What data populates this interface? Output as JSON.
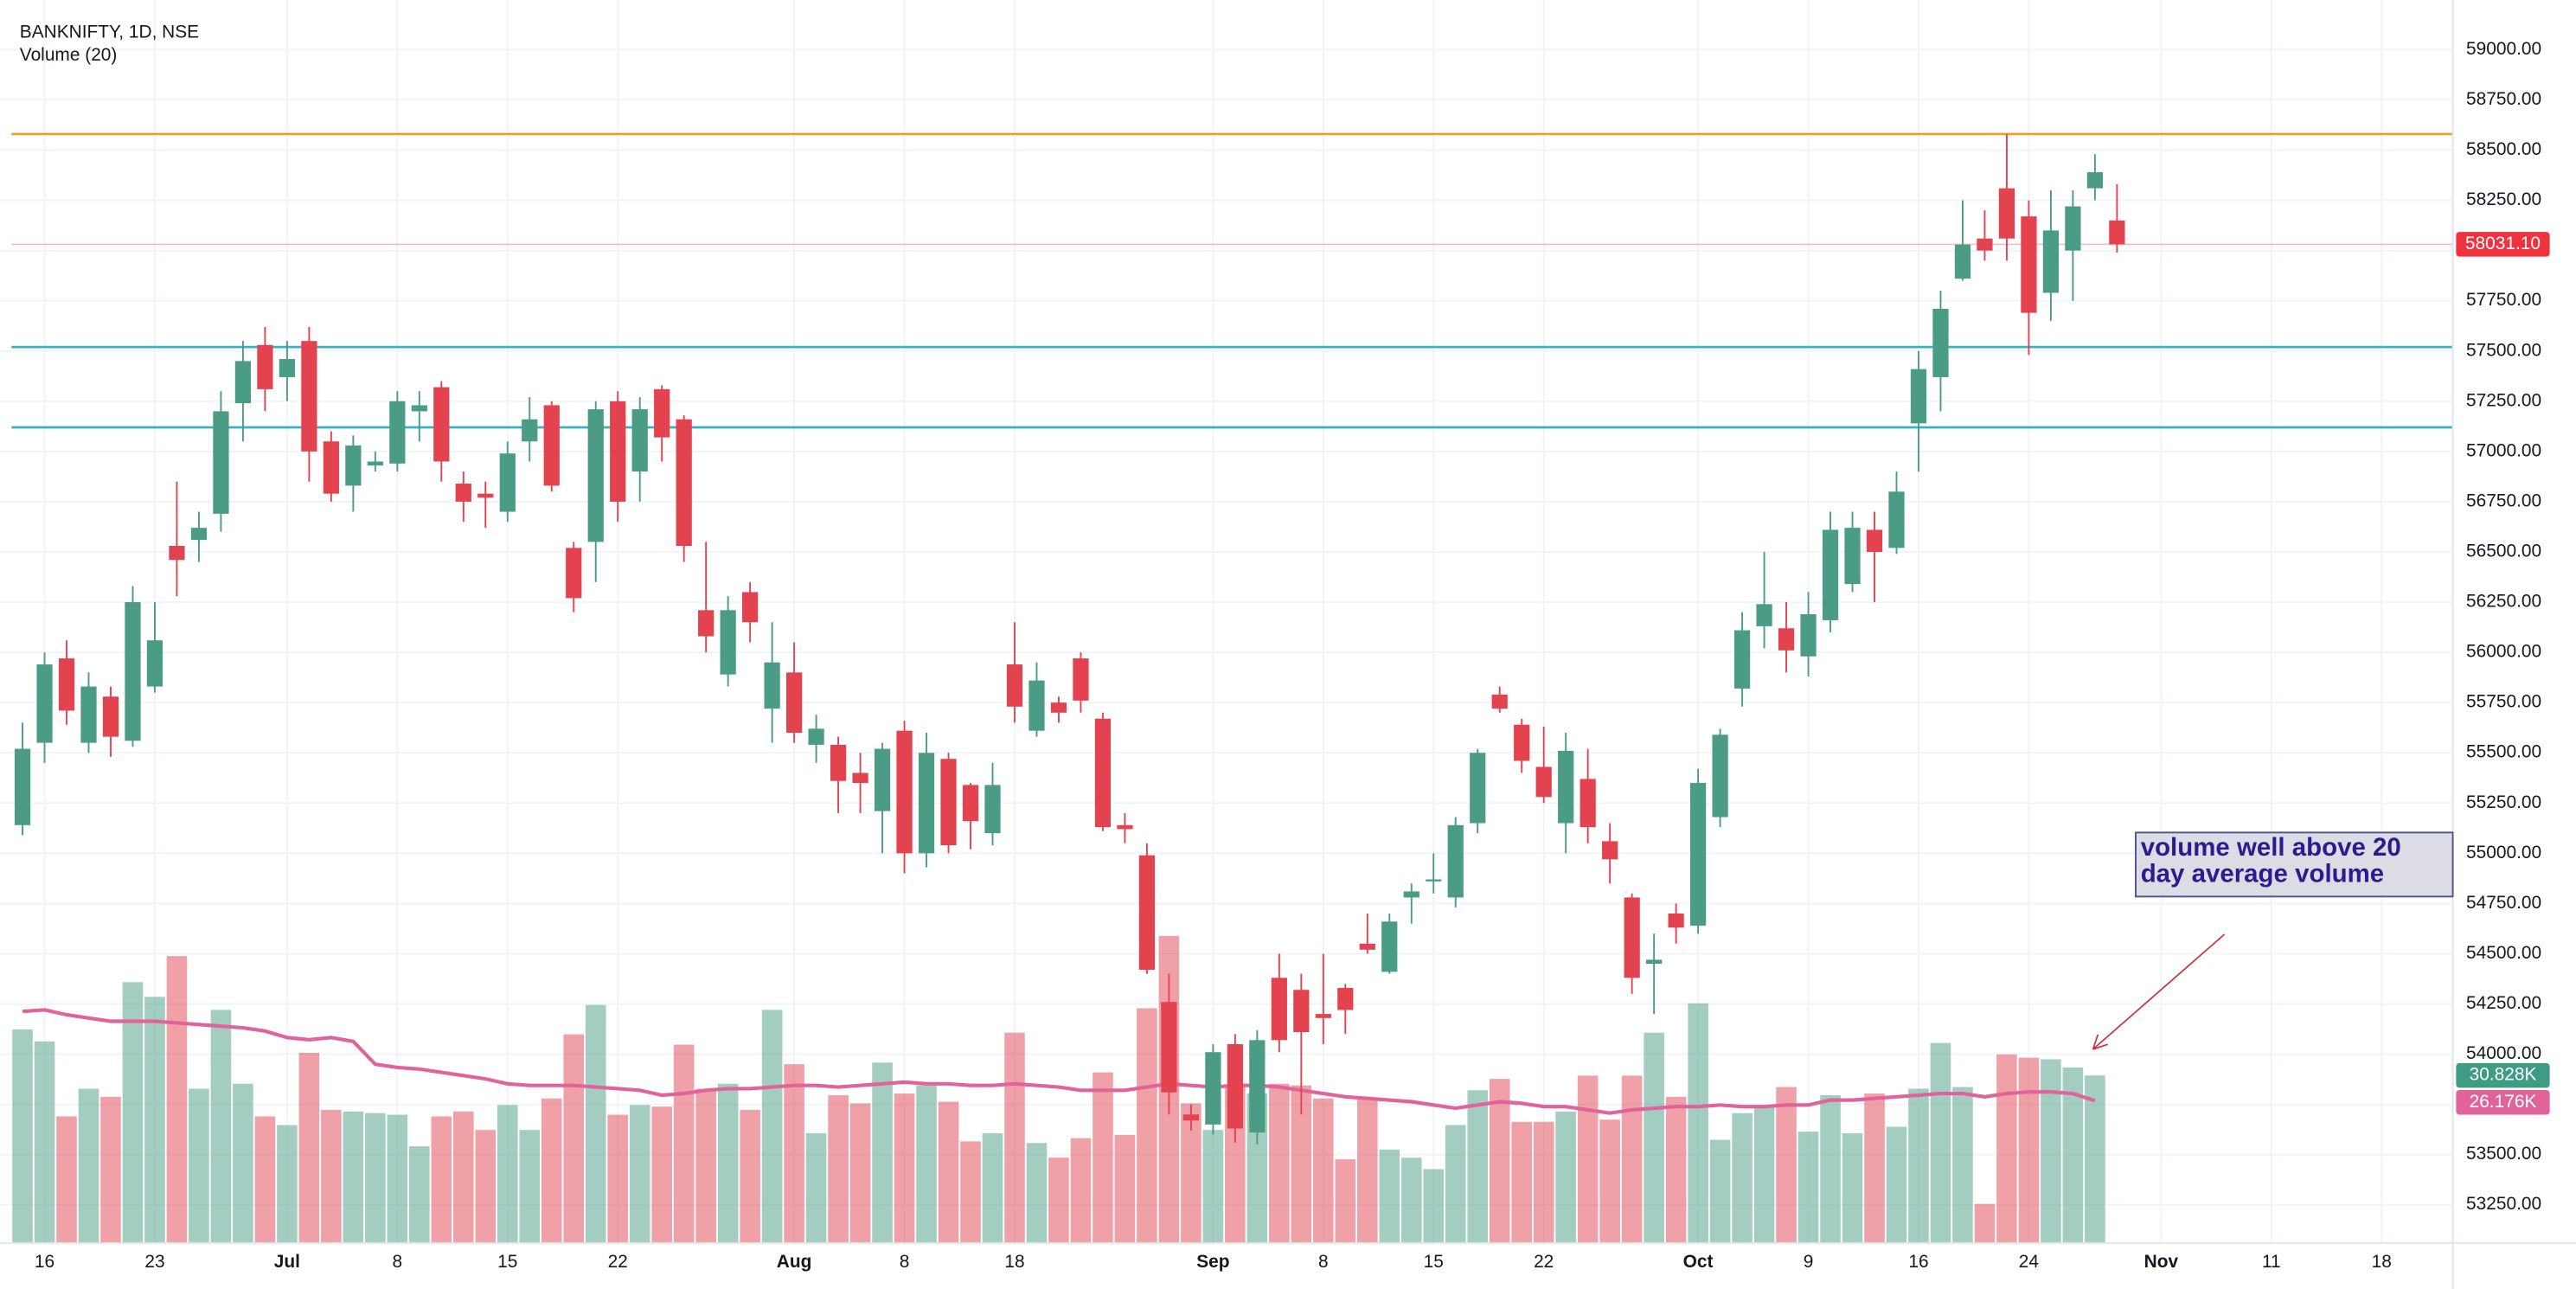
{
  "chart_data": {
    "type": "candlestick",
    "title": "BANKNIFTY, 1D, NSE",
    "categories": [
      null,
      "16",
      null,
      null,
      null,
      null,
      "23",
      null,
      null,
      null,
      null,
      null,
      "Jul",
      null,
      null,
      null,
      null,
      "8",
      null,
      null,
      null,
      null,
      "15",
      null,
      null,
      null,
      null,
      "22",
      null,
      null,
      null,
      null,
      null,
      null,
      null,
      "Aug",
      null,
      null,
      null,
      null,
      "8",
      null,
      null,
      null,
      null,
      "18",
      null,
      null,
      null,
      null,
      null,
      null,
      null,
      null,
      "Sep",
      null,
      null,
      null,
      null,
      "8",
      null,
      null,
      null,
      null,
      "15",
      null,
      null,
      null,
      null,
      "22",
      null,
      null,
      null,
      null,
      null,
      null,
      "Oct",
      null,
      null,
      null,
      null,
      "9",
      null,
      null,
      null,
      null,
      "16",
      null,
      null,
      null,
      null,
      "24",
      null,
      null,
      null,
      null,
      null,
      "Nov",
      null,
      null,
      null,
      null,
      "11",
      null,
      null,
      null,
      null,
      "18",
      null,
      null
    ],
    "open": [
      55140,
      55550,
      55970,
      55550,
      55780,
      55560,
      55830,
      56530,
      56560,
      56690,
      57240,
      57530,
      57370,
      57550,
      57050,
      56830,
      56930,
      56940,
      57200,
      57320,
      56840,
      56790,
      56700,
      57050,
      57230,
      56520,
      56550,
      57250,
      56900,
      57310,
      57160,
      56210,
      55890,
      56300,
      55720,
      55900,
      55540,
      55540,
      55400,
      55210,
      55610,
      55000,
      55470,
      55340,
      55100,
      55940,
      55610,
      55750,
      55970,
      55670,
      55140,
      54990,
      54260,
      53700,
      53650,
      54050,
      53610,
      54380,
      54320,
      54200,
      54330,
      54550,
      54410,
      54780,
      54860,
      54780,
      55150,
      55790,
      55640,
      55430,
      55150,
      55370,
      55060,
      54780,
      54450,
      54700,
      54640,
      55180,
      55820,
      56130,
      56120,
      55980,
      56160,
      56340,
      56610,
      56520,
      57140,
      57370,
      57860,
      58060,
      58310,
      58170,
      57790,
      58000,
      58310,
      58150,
      null,
      null,
      null,
      null,
      null,
      null,
      null,
      null,
      null,
      null,
      null,
      null,
      null,
      null
    ],
    "high": [
      55650,
      56000,
      56060,
      55900,
      55830,
      56330,
      56250,
      56850,
      56700,
      57300,
      57550,
      57620,
      57550,
      57620,
      57100,
      57080,
      57000,
      57300,
      57300,
      57350,
      56900,
      56850,
      57050,
      57270,
      57250,
      56550,
      57250,
      57300,
      57270,
      57330,
      57180,
      56550,
      56280,
      56350,
      56150,
      56050,
      55690,
      55580,
      55500,
      55550,
      55660,
      55600,
      55500,
      55350,
      55450,
      56150,
      55950,
      55780,
      56000,
      55700,
      55200,
      55050,
      54400,
      53750,
      54050,
      54100,
      54120,
      54500,
      54400,
      54500,
      54350,
      54700,
      54700,
      54850,
      55000,
      55180,
      55520,
      55830,
      55670,
      55630,
      55600,
      55520,
      55150,
      54800,
      54600,
      54750,
      55420,
      55620,
      56200,
      56500,
      56250,
      56300,
      56700,
      56700,
      56700,
      56900,
      57500,
      57800,
      58250,
      58200,
      58580,
      58250,
      58300,
      58300,
      58480,
      58330,
      null,
      null,
      null,
      null,
      null,
      null,
      null,
      null,
      null,
      null,
      null,
      null,
      null,
      null
    ],
    "low": [
      55090,
      55450,
      55640,
      55500,
      55480,
      55530,
      55800,
      56280,
      56450,
      56600,
      57050,
      57200,
      57250,
      56850,
      56750,
      56700,
      56900,
      56900,
      57050,
      56850,
      56650,
      56620,
      56650,
      56950,
      56800,
      56200,
      56350,
      56650,
      56750,
      56950,
      56450,
      56000,
      55830,
      56050,
      55550,
      55550,
      55450,
      55200,
      55200,
      55000,
      54900,
      54930,
      55000,
      55020,
      55040,
      55650,
      55580,
      55650,
      55700,
      55110,
      55050,
      54400,
      53700,
      53620,
      53600,
      53560,
      53550,
      54010,
      53700,
      54050,
      54100,
      54500,
      54400,
      54650,
      54800,
      54730,
      55100,
      55700,
      55400,
      55250,
      55000,
      55050,
      54850,
      54300,
      54200,
      54550,
      54600,
      55130,
      55730,
      56020,
      55900,
      55880,
      56100,
      56300,
      56250,
      56490,
      56900,
      57200,
      57850,
      57950,
      57950,
      57480,
      57650,
      57750,
      58250,
      57990,
      null,
      null,
      null,
      null,
      null,
      null,
      null,
      null,
      null,
      null,
      null,
      null,
      null,
      null
    ],
    "close": [
      55520,
      55940,
      55710,
      55830,
      55580,
      56250,
      56060,
      56460,
      56620,
      57200,
      57450,
      57310,
      57460,
      57000,
      56790,
      57030,
      56950,
      57250,
      57230,
      56950,
      56750,
      56770,
      56990,
      57160,
      56830,
      56270,
      57210,
      56750,
      57210,
      57070,
      56530,
      56080,
      56210,
      56150,
      55950,
      55600,
      55620,
      55360,
      55350,
      55520,
      55000,
      55500,
      55040,
      55160,
      55340,
      55730,
      55860,
      55700,
      55760,
      55130,
      55120,
      54420,
      53810,
      53670,
      54010,
      53630,
      54070,
      54070,
      54110,
      54180,
      54220,
      54520,
      54660,
      54810,
      54870,
      55140,
      55500,
      55720,
      55460,
      55280,
      55510,
      55130,
      54970,
      54380,
      54470,
      54630,
      55350,
      55590,
      56110,
      56240,
      56010,
      56190,
      56610,
      56620,
      56500,
      56800,
      57410,
      57710,
      58030,
      58000,
      58060,
      57690,
      58100,
      58220,
      58390,
      58031.1,
      null,
      null,
      null,
      null,
      null,
      null,
      null,
      null,
      null,
      null,
      null,
      null,
      null,
      null
    ],
    "up_color": "#4a9c84",
    "down_color": "#e2434f",
    "ylim": [
      53060,
      59190
    ],
    "yticks": [
      {
        "value": 59000,
        "label": "59000.00"
      },
      {
        "value": 58750,
        "label": "58750.00"
      },
      {
        "value": 58500,
        "label": "58500.00"
      },
      {
        "value": 58250,
        "label": "58250.00"
      },
      {
        "value": 58000,
        "label": "58000.00"
      },
      {
        "value": 57750,
        "label": "57750.00"
      },
      {
        "value": 57500,
        "label": "57500.00"
      },
      {
        "value": 57250,
        "label": "57250.00"
      },
      {
        "value": 57000,
        "label": "57000.00"
      },
      {
        "value": 56750,
        "label": "56750.00"
      },
      {
        "value": 56500,
        "label": "56500.00"
      },
      {
        "value": 56250,
        "label": "56250.00"
      },
      {
        "value": 56000,
        "label": "56000.00"
      },
      {
        "value": 55750,
        "label": "55750.00"
      },
      {
        "value": 55500,
        "label": "55500.00"
      },
      {
        "value": 55250,
        "label": "55250.00"
      },
      {
        "value": 55000,
        "label": "55000.00"
      },
      {
        "value": 54750,
        "label": "54750.00"
      },
      {
        "value": 54500,
        "label": "54500.00"
      },
      {
        "value": 54250,
        "label": "54250.00"
      },
      {
        "value": 54000,
        "label": "54000.00"
      },
      {
        "value": 53750,
        "label": "53750.00"
      },
      {
        "value": 53500,
        "label": "53500.00"
      },
      {
        "value": 53250,
        "label": "53250.00"
      }
    ],
    "grid": true,
    "last_price": {
      "value": 58031.1,
      "label": "58031.10",
      "color": "#f0323f"
    },
    "hlines": [
      {
        "value": 58580,
        "color": "#f59a23"
      },
      {
        "value": 57520,
        "color": "#3ab1c2"
      },
      {
        "value": 57120,
        "color": "#3ab1c2"
      }
    ],
    "volume": {
      "name": "Volume (20)",
      "values": [
        39.3,
        37.1,
        23.3,
        28.4,
        26.9,
        48.0,
        45.3,
        52.8,
        28.4,
        42.9,
        29.3,
        23.3,
        21.7,
        35.0,
        24.5,
        24.2,
        23.9,
        23.6,
        17.8,
        23.3,
        24.2,
        20.8,
        25.4,
        20.8,
        26.6,
        38.4,
        43.8,
        23.6,
        25.4,
        25.1,
        36.5,
        28.4,
        29.3,
        24.5,
        42.9,
        32.9,
        20.2,
        27.2,
        25.7,
        33.2,
        27.5,
        29.0,
        26.0,
        18.7,
        20.2,
        38.7,
        18.4,
        15.7,
        19.3,
        31.4,
        19.9,
        43.2,
        56.5,
        25.7,
        20.8,
        28.7,
        27.5,
        29.3,
        29.0,
        26.6,
        15.4,
        26.6,
        17.2,
        15.7,
        13.6,
        21.7,
        28.1,
        30.2,
        22.3,
        22.3,
        24.2,
        30.8,
        22.7,
        30.8,
        38.7,
        26.9,
        44.1,
        19.0,
        23.9,
        25.4,
        28.7,
        20.5,
        27.2,
        20.2,
        27.5,
        21.4,
        28.4,
        36.8,
        28.7,
        7.2,
        34.7,
        34.1,
        33.8,
        32.3,
        30.828,
        null,
        null,
        null,
        null,
        null,
        null,
        null,
        null,
        null,
        null,
        null,
        null,
        null,
        null,
        null
      ],
      "last_label": {
        "value": 30.828,
        "label": "30.828K",
        "color": "#3f9c84"
      },
      "ma": {
        "color": "#e0649a",
        "values": [
          42.6,
          42.9,
          42.0,
          41.4,
          40.8,
          40.8,
          40.8,
          40.5,
          40.2,
          39.9,
          39.6,
          39.0,
          37.8,
          37.4,
          37.8,
          37.1,
          32.9,
          32.3,
          32.0,
          31.4,
          30.8,
          30.2,
          29.3,
          29.0,
          29.0,
          29.0,
          28.7,
          28.4,
          28.1,
          27.2,
          27.5,
          28.1,
          28.4,
          28.4,
          28.7,
          29.0,
          29.0,
          28.7,
          29.0,
          29.3,
          29.6,
          29.3,
          29.3,
          29.0,
          29.0,
          29.3,
          29.0,
          28.7,
          28.1,
          28.1,
          28.1,
          28.7,
          29.3,
          29.0,
          28.7,
          29.0,
          29.0,
          28.7,
          28.1,
          27.5,
          26.9,
          26.6,
          26.3,
          26.0,
          25.4,
          24.8,
          25.4,
          26.0,
          25.7,
          25.1,
          25.1,
          24.5,
          23.9,
          24.5,
          24.8,
          25.1,
          25.1,
          25.4,
          25.1,
          25.1,
          25.4,
          25.4,
          26.3,
          26.3,
          26.6,
          26.9,
          27.2,
          27.5,
          27.5,
          26.9,
          27.5,
          27.8,
          27.8,
          27.5,
          26.176,
          null,
          null,
          null,
          null,
          null,
          null,
          null,
          null,
          null,
          null,
          null,
          null,
          null,
          null,
          null
        ],
        "last_label": {
          "value": 26.176,
          "label": "26.176K"
        }
      }
    },
    "annotation": {
      "text": "volume well above 20 day average volume"
    }
  }
}
